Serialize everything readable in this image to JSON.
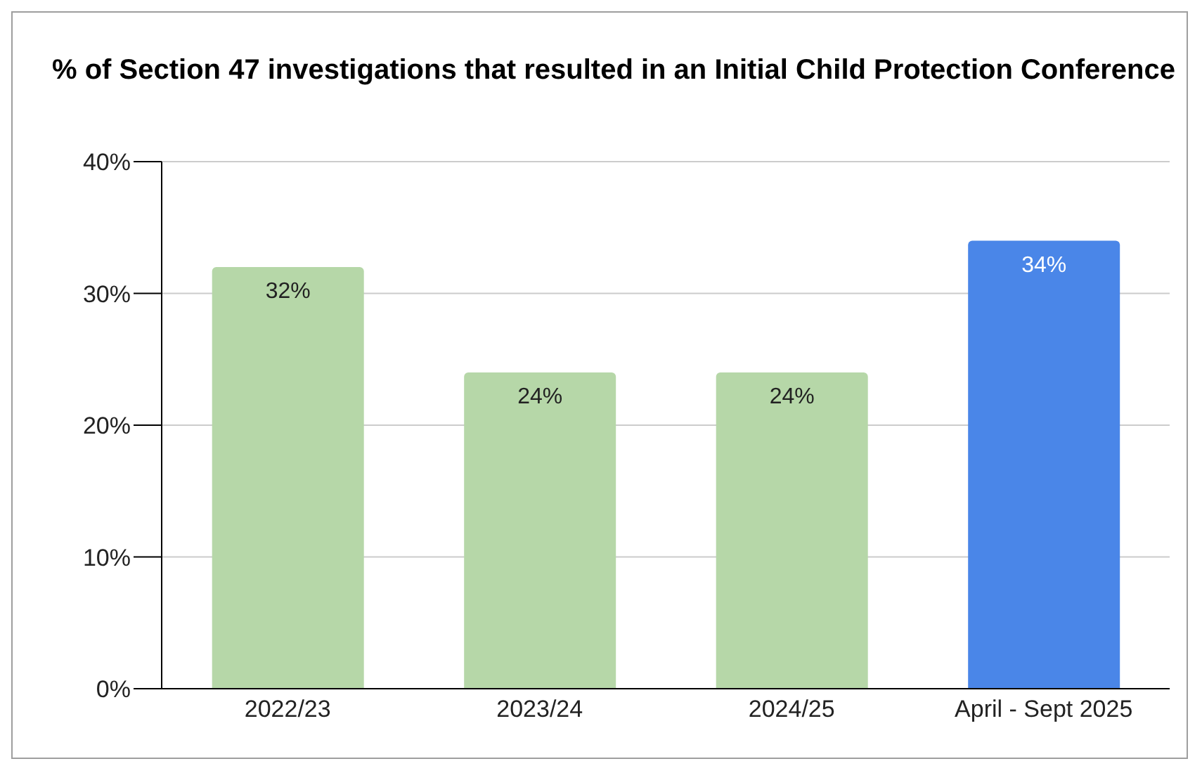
{
  "chart_data": {
    "type": "bar",
    "title": "% of Section 47 investigations that resulted in an Initial Child Protection Conference",
    "categories": [
      "2022/23",
      "2023/24",
      "2024/25",
      "April - Sept 2025"
    ],
    "values": [
      32,
      24,
      24,
      34
    ],
    "colors": [
      "#b6d7a8",
      "#b6d7a8",
      "#b6d7a8",
      "#4a86e8"
    ],
    "value_labels": [
      "32%",
      "24%",
      "24%",
      "34%"
    ],
    "ylim": [
      0,
      40
    ],
    "yticks": [
      {
        "value": 0,
        "label": "0%"
      },
      {
        "value": 10,
        "label": "10%"
      },
      {
        "value": 20,
        "label": "20%"
      },
      {
        "value": 30,
        "label": "30%"
      },
      {
        "value": 40,
        "label": "40%"
      }
    ],
    "grid": "y"
  }
}
